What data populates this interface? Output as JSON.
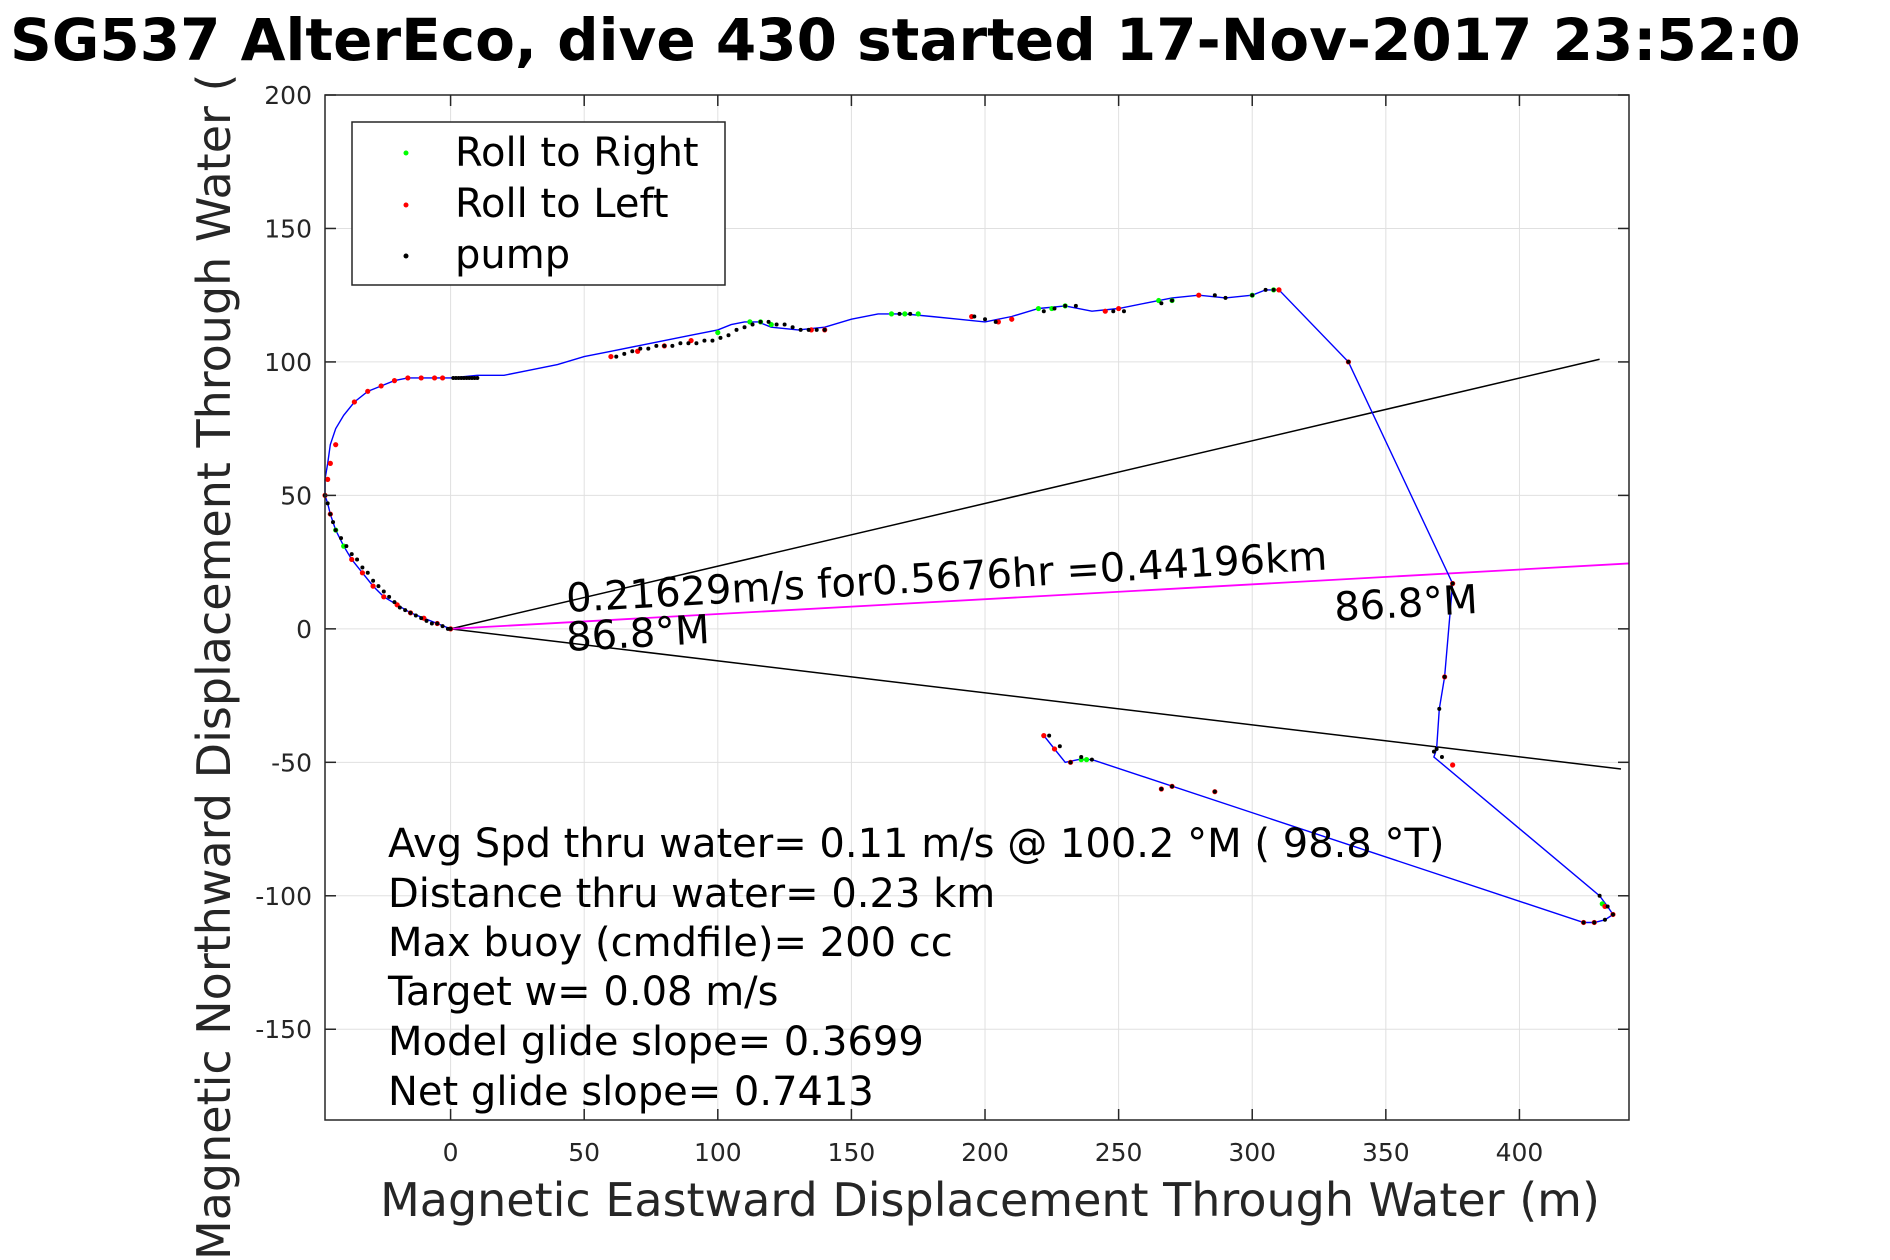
{
  "colors": {
    "track": "#0000ff",
    "current_line": "#ff00ff",
    "cone_line": "#000000",
    "roll_right": "#00ff00",
    "roll_left": "#ff0000",
    "pump": "#000000",
    "grid": "#e0e0e0",
    "axis": "#262626"
  },
  "chart_data": {
    "type": "line",
    "title": "SG537 AlterEco, dive 430 started 17-Nov-2017 23:52:0",
    "xlabel": "Magnetic Eastward Displacement Through Water (m)",
    "ylabel": "Magnetic Northward Displacement Through Water (",
    "xlim": [
      -47,
      441
    ],
    "ylim": [
      -184,
      200
    ],
    "xticks": [
      0,
      50,
      100,
      150,
      200,
      250,
      300,
      350,
      400
    ],
    "yticks": [
      200,
      150,
      100,
      50,
      0,
      -50,
      -100,
      -150
    ],
    "grid": true,
    "legend_position": "top-left",
    "legend": [
      {
        "label": "Roll to Right",
        "marker": "roll_right"
      },
      {
        "label": "Roll to Left",
        "marker": "roll_left"
      },
      {
        "label": "pump",
        "marker": "pump"
      }
    ],
    "track": {
      "x": [
        0,
        -5,
        -10,
        -15,
        -20,
        -25,
        -29,
        -33,
        -37,
        -40,
        -43,
        -45,
        -46,
        -47,
        -47,
        -46,
        -45,
        -43,
        -40,
        -36,
        -31,
        -26,
        -21,
        -16,
        -11,
        -6,
        -3,
        0,
        10,
        20,
        30,
        40,
        50,
        60,
        70,
        80,
        90,
        100,
        105,
        110,
        115,
        120,
        130,
        140,
        150,
        160,
        170,
        180,
        190,
        200,
        205,
        210,
        220,
        230,
        240,
        250,
        260,
        270,
        280,
        290,
        300,
        305,
        310,
        336,
        375,
        372,
        370,
        369,
        368,
        430,
        433,
        435,
        432,
        428,
        424,
        240,
        235,
        230,
        226,
        222
      ],
      "y": [
        0,
        2,
        4,
        6,
        9,
        12,
        16,
        21,
        26,
        31,
        37,
        43,
        47,
        50,
        56,
        62,
        69,
        75,
        80,
        85,
        89,
        91,
        93,
        94,
        94,
        94,
        94,
        94,
        95,
        95,
        97,
        99,
        102,
        104,
        106,
        108,
        110,
        112,
        114,
        115,
        115,
        113,
        112,
        113,
        116,
        118,
        118,
        117,
        116,
        115,
        116,
        117,
        120,
        121,
        119,
        120,
        122,
        124,
        125,
        124,
        125,
        127,
        127,
        100,
        17,
        -18,
        -30,
        -45,
        -48,
        -100,
        -104,
        -107,
        -109,
        -110,
        -110,
        -49,
        -49,
        -50,
        -45,
        -40
      ]
    },
    "roll_right_points": {
      "x": [
        -40,
        -43,
        100,
        112,
        116,
        120,
        165,
        170,
        175,
        220,
        225,
        230,
        265,
        270,
        300,
        308,
        238,
        236,
        431
      ],
      "y": [
        31,
        37,
        111,
        115,
        115,
        114,
        118,
        118,
        118,
        120,
        120,
        121,
        123,
        123,
        125,
        127,
        -49,
        -49,
        -103
      ]
    },
    "roll_left_points": {
      "x": [
        -5,
        -10,
        -15,
        -20,
        -25,
        -29,
        -33,
        -37,
        -45,
        -47,
        -46,
        -45,
        -43,
        -36,
        -31,
        -26,
        -21,
        -16,
        -11,
        -6,
        -3,
        0,
        60,
        70,
        80,
        90,
        135,
        140,
        195,
        205,
        210,
        245,
        250,
        280,
        310,
        336,
        375,
        372,
        375,
        432,
        435,
        428,
        424,
        226,
        222,
        232,
        266,
        270,
        286
      ],
      "y": [
        2,
        4,
        6,
        9,
        12,
        16,
        21,
        26,
        43,
        50,
        56,
        62,
        69,
        85,
        89,
        91,
        93,
        94,
        94,
        94,
        94,
        0,
        102,
        104,
        106,
        108,
        112,
        112,
        117,
        115,
        116,
        119,
        120,
        125,
        127,
        100,
        17,
        -18,
        -51,
        -104,
        -107,
        -110,
        -110,
        -45,
        -40,
        -50,
        -60,
        -59,
        -61
      ]
    },
    "pump_points": {
      "x": [
        -47,
        -46,
        -45,
        -44,
        -43,
        -41,
        -39,
        -37,
        -35,
        -33,
        -31,
        -29,
        -27,
        -25,
        -23,
        -21,
        -19,
        -17,
        -15,
        -13,
        -11,
        -9,
        -7,
        -5,
        -3,
        -1,
        0,
        1,
        2,
        3,
        4,
        5,
        6,
        7,
        8,
        9,
        10,
        62,
        65,
        68,
        71,
        74,
        77,
        80,
        83,
        86,
        89,
        92,
        95,
        98,
        101,
        104,
        107,
        110,
        113,
        116,
        119,
        122,
        125,
        128,
        131,
        134,
        137,
        140,
        168,
        172,
        196,
        200,
        204,
        222,
        226,
        230,
        234,
        248,
        252,
        266,
        270,
        286,
        290,
        300,
        305,
        308,
        336,
        375,
        372,
        370,
        369,
        368,
        371,
        430,
        433,
        435,
        432,
        428,
        424,
        240,
        236,
        232,
        228,
        224,
        266,
        270,
        286
      ],
      "y": [
        50,
        47,
        43,
        40,
        37,
        34,
        31,
        28,
        26,
        23,
        21,
        18,
        16,
        14,
        12,
        10,
        8,
        7,
        6,
        5,
        4,
        3,
        2,
        2,
        1,
        0,
        0,
        94,
        94,
        94,
        94,
        94,
        94,
        94,
        94,
        94,
        94,
        102,
        103,
        104,
        105,
        105,
        106,
        106,
        106,
        107,
        107,
        107,
        108,
        108,
        109,
        110,
        112,
        113,
        114,
        115,
        115,
        114,
        114,
        113,
        112,
        112,
        112,
        112,
        118,
        118,
        117,
        116,
        115,
        119,
        120,
        121,
        121,
        119,
        119,
        122,
        123,
        125,
        124,
        125,
        127,
        127,
        100,
        17,
        -18,
        -30,
        -45,
        -46,
        -48,
        -100,
        -104,
        -107,
        -109,
        -110,
        -110,
        -49,
        -48,
        -50,
        -44,
        -40,
        -60,
        -59,
        -61
      ]
    },
    "current_line": {
      "x": [
        0,
        441
      ],
      "y": [
        0,
        24.5
      ]
    },
    "cone_lines": [
      {
        "x": [
          0,
          430
        ],
        "y": [
          0,
          101
        ]
      },
      {
        "x": [
          0,
          438
        ],
        "y": [
          0,
          -52.5
        ]
      }
    ],
    "annotations": {
      "current_text": "0.21629m/s for0.5676hr =0.44196km",
      "heading_left": "86.8°M",
      "heading_right": "86.8°M"
    },
    "stats_lines": [
      "Avg Spd thru water=  0.11 m/s @ 100.2 °M ( 98.8 °T)",
      "Distance thru water=  0.23 km",
      "Max buoy (cmdfile)= 200 cc",
      "Target w= 0.08 m/s",
      "Model glide slope= 0.3699",
      "Net glide slope= 0.7413"
    ]
  }
}
